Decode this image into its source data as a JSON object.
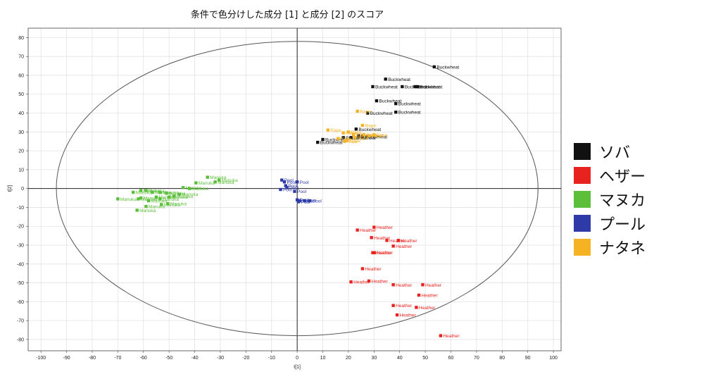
{
  "chart_data": {
    "type": "scatter",
    "title": "条件で色分けした成分 [1] と成分 [2] のスコア",
    "xlabel": "t[1]",
    "ylabel": "t[2]",
    "xlim": [
      -105,
      103
    ],
    "ylim": [
      -86,
      85
    ],
    "xticks": [
      -100,
      -90,
      -80,
      -70,
      -60,
      -50,
      -40,
      -30,
      -20,
      -10,
      0,
      10,
      20,
      30,
      40,
      50,
      60,
      70,
      80,
      90,
      100
    ],
    "yticks": [
      80,
      70,
      60,
      50,
      40,
      30,
      20,
      10,
      0,
      -10,
      -20,
      -30,
      -40,
      -50,
      -60,
      -70,
      -80
    ],
    "grid": true,
    "ellipse": {
      "cx": 0,
      "cy": 0,
      "rx": 94,
      "ry": 78
    },
    "legend_position": "right",
    "legend": [
      {
        "label": "ソバ",
        "color": "#111111"
      },
      {
        "label": "ヘザー",
        "color": "#e8231f"
      },
      {
        "label": "マヌカ",
        "color": "#5cbf3a"
      },
      {
        "label": "プール",
        "color": "#2e3aa8"
      },
      {
        "label": "ナタネ",
        "color": "#f5b323"
      }
    ],
    "series": [
      {
        "label": "Buckwheat",
        "color": "#111111",
        "points": [
          [
            53.5,
            64.5
          ],
          [
            34.5,
            58
          ],
          [
            29.5,
            54
          ],
          [
            41,
            54
          ],
          [
            46,
            54
          ],
          [
            47,
            54
          ],
          [
            31,
            46.5
          ],
          [
            38.5,
            45
          ],
          [
            27.5,
            40
          ],
          [
            38.5,
            40.5
          ],
          [
            23,
            31.5
          ],
          [
            24,
            28
          ],
          [
            25.5,
            27.5
          ],
          [
            18,
            27
          ],
          [
            21,
            27
          ],
          [
            10,
            26
          ],
          [
            8,
            24.5
          ]
        ]
      },
      {
        "label": "Heather",
        "color": "#e8231f",
        "points": [
          [
            30,
            -20.5
          ],
          [
            23.5,
            -22
          ],
          [
            29,
            -26
          ],
          [
            35,
            -27.5
          ],
          [
            39.5,
            -27.5
          ],
          [
            37.5,
            -30.5
          ],
          [
            29.5,
            -34
          ],
          [
            30,
            -34
          ],
          [
            25.5,
            -42.5
          ],
          [
            21,
            -49.5
          ],
          [
            28,
            -49
          ],
          [
            37.5,
            -51
          ],
          [
            49,
            -51
          ],
          [
            47.5,
            -56.5
          ],
          [
            37.5,
            -62
          ],
          [
            46.5,
            -63
          ],
          [
            39,
            -67
          ],
          [
            56,
            -78
          ]
        ]
      },
      {
        "label": "Manuka",
        "color": "#5cbf3a",
        "points": [
          [
            -35,
            6
          ],
          [
            -30.5,
            4.5
          ],
          [
            -39.5,
            3
          ],
          [
            -32,
            3.5
          ],
          [
            -44.5,
            0.5
          ],
          [
            -42,
            0
          ],
          [
            -61,
            -1
          ],
          [
            -59,
            -1
          ],
          [
            -56.5,
            -2
          ],
          [
            -53.5,
            -2
          ],
          [
            -51,
            -2.5
          ],
          [
            -46,
            -3
          ],
          [
            -64,
            -2
          ],
          [
            -48,
            -4
          ],
          [
            -61,
            -5
          ],
          [
            -55,
            -4.5
          ],
          [
            -53.5,
            -5.5
          ],
          [
            -50,
            -4.5
          ],
          [
            -62,
            -5.5
          ],
          [
            -70,
            -5.5
          ],
          [
            -58,
            -6.5
          ],
          [
            -53,
            -8.5
          ],
          [
            -50.5,
            -8
          ],
          [
            -59,
            -9.5
          ],
          [
            -62.5,
            -11.5
          ]
        ]
      },
      {
        "label": "Pool",
        "color": "#2e3aa8",
        "points": [
          [
            -6,
            4.5
          ],
          [
            -5,
            3.5
          ],
          [
            -4.5,
            1.5
          ],
          [
            -6.5,
            -0.5
          ],
          [
            -4,
            0.5
          ],
          [
            0,
            3.5
          ],
          [
            -1,
            -1.5
          ],
          [
            0,
            -6
          ],
          [
            1,
            -6.5
          ],
          [
            3,
            -6.5
          ],
          [
            5,
            -6.5
          ],
          [
            0.5,
            -7
          ]
        ]
      },
      {
        "label": "Rape",
        "color": "#f5b323",
        "points": [
          [
            23.5,
            41
          ],
          [
            25.5,
            33.5
          ],
          [
            12,
            31
          ],
          [
            18,
            29.5
          ],
          [
            20,
            30
          ],
          [
            22,
            28.5
          ],
          [
            26,
            28.5
          ],
          [
            28,
            28
          ],
          [
            30,
            28.5
          ],
          [
            16,
            26.5
          ],
          [
            19.5,
            25.5
          ],
          [
            22.5,
            27
          ],
          [
            18.5,
            25
          ]
        ]
      }
    ]
  }
}
